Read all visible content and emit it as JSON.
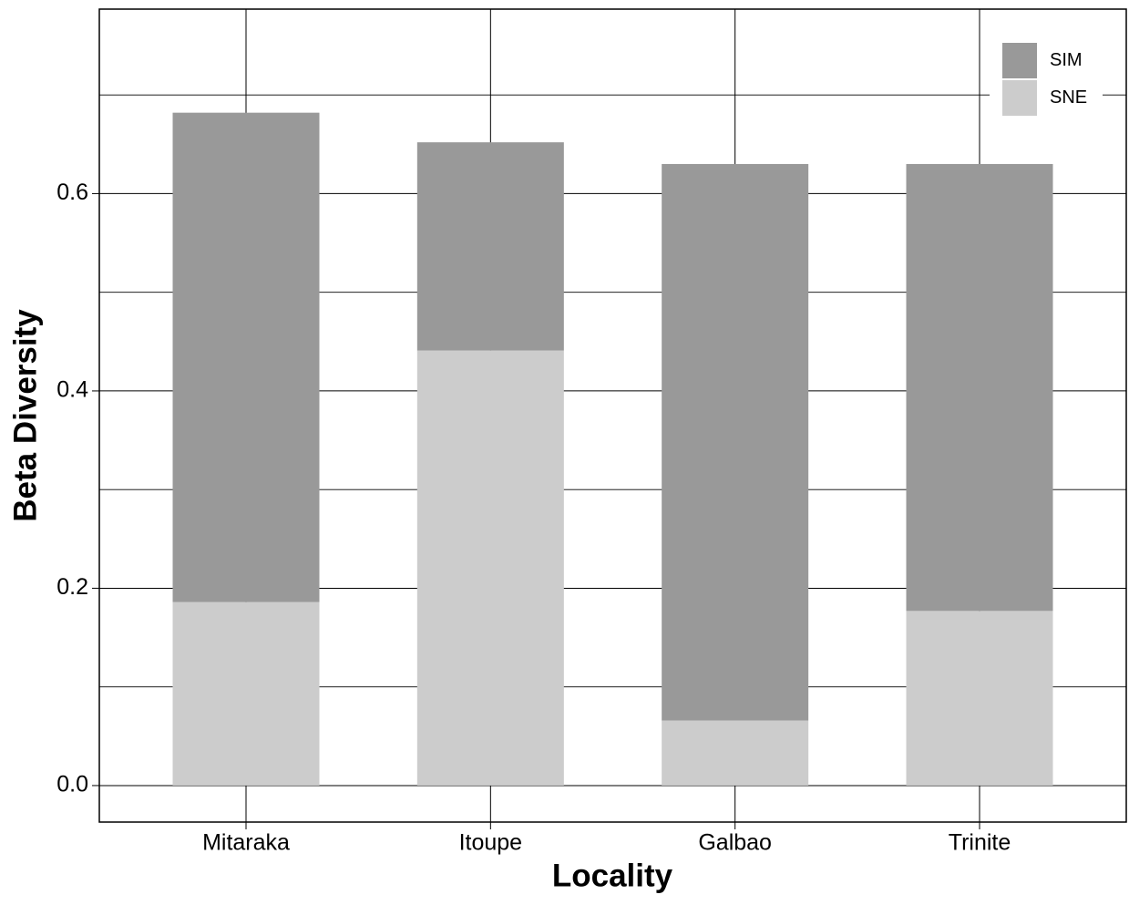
{
  "chart_data": {
    "type": "stacked_bar",
    "x_label": "Locality",
    "y_label": "Beta Diversity",
    "categories": [
      "Mitaraka",
      "Itoupe",
      "Galbao",
      "Trinite"
    ],
    "series": [
      {
        "name": "SIM",
        "color": "#999999",
        "values": [
          0.496,
          0.211,
          0.564,
          0.453
        ]
      },
      {
        "name": "SNE",
        "color": "#cccccc",
        "values": [
          0.186,
          0.441,
          0.066,
          0.177
        ]
      }
    ],
    "ylim": [
      -0.037,
      0.787
    ],
    "yticks": [
      {
        "value": 0,
        "label": "0.0"
      },
      0.2,
      0.4,
      0.6
    ],
    "y_minor_ticks": [
      0.1,
      0.3,
      0.5,
      0.7
    ],
    "grid": true,
    "legend_position": "top-right"
  }
}
